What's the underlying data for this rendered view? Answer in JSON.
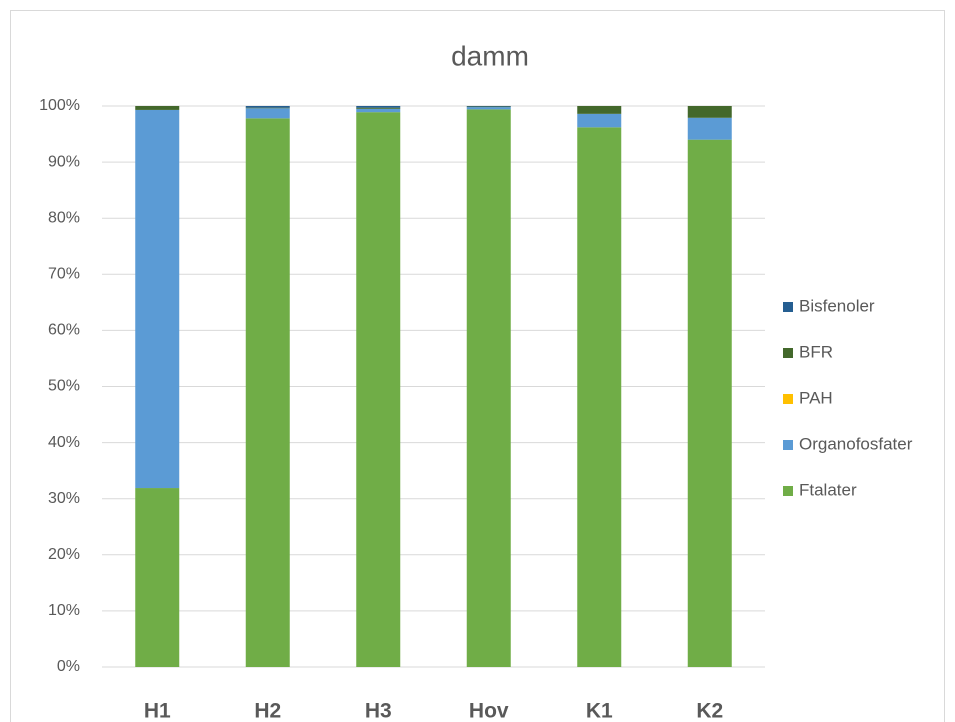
{
  "chart_data": {
    "type": "stacked_bar",
    "title": "damm",
    "categories": [
      "H1",
      "H2",
      "H3",
      "Hov",
      "K1",
      "K2"
    ],
    "series": [
      {
        "name": "Ftalater",
        "color": "#70ad47",
        "values": [
          31.9,
          97.8,
          98.9,
          99.4,
          96.2,
          94.0
        ]
      },
      {
        "name": "Organofosfater",
        "color": "#5b9bd5",
        "values": [
          67.4,
          1.8,
          0.6,
          0.4,
          2.4,
          3.9
        ]
      },
      {
        "name": "PAH",
        "color": "#ffc000",
        "values": [
          0,
          0,
          0,
          0,
          0,
          0
        ]
      },
      {
        "name": "BFR",
        "color": "#43682b",
        "values": [
          0.7,
          0.1,
          0.2,
          0.1,
          1.4,
          2.1
        ]
      },
      {
        "name": "Bisfenoler",
        "color": "#255e91",
        "values": [
          0,
          0.3,
          0.3,
          0.1,
          0,
          0
        ]
      }
    ],
    "ylim": [
      0,
      100
    ],
    "yticks": [
      {
        "value": 0,
        "label": "0%"
      },
      {
        "value": 10,
        "label": "10%"
      },
      {
        "value": 20,
        "label": "20%"
      },
      {
        "value": 30,
        "label": "30%"
      },
      {
        "value": 40,
        "label": "40%"
      },
      {
        "value": 50,
        "label": "50%"
      },
      {
        "value": 60,
        "label": "60%"
      },
      {
        "value": 70,
        "label": "70%"
      },
      {
        "value": 80,
        "label": "80%"
      },
      {
        "value": 90,
        "label": "90%"
      },
      {
        "value": 100,
        "label": "100%"
      }
    ],
    "grid": true,
    "legend": "right"
  }
}
